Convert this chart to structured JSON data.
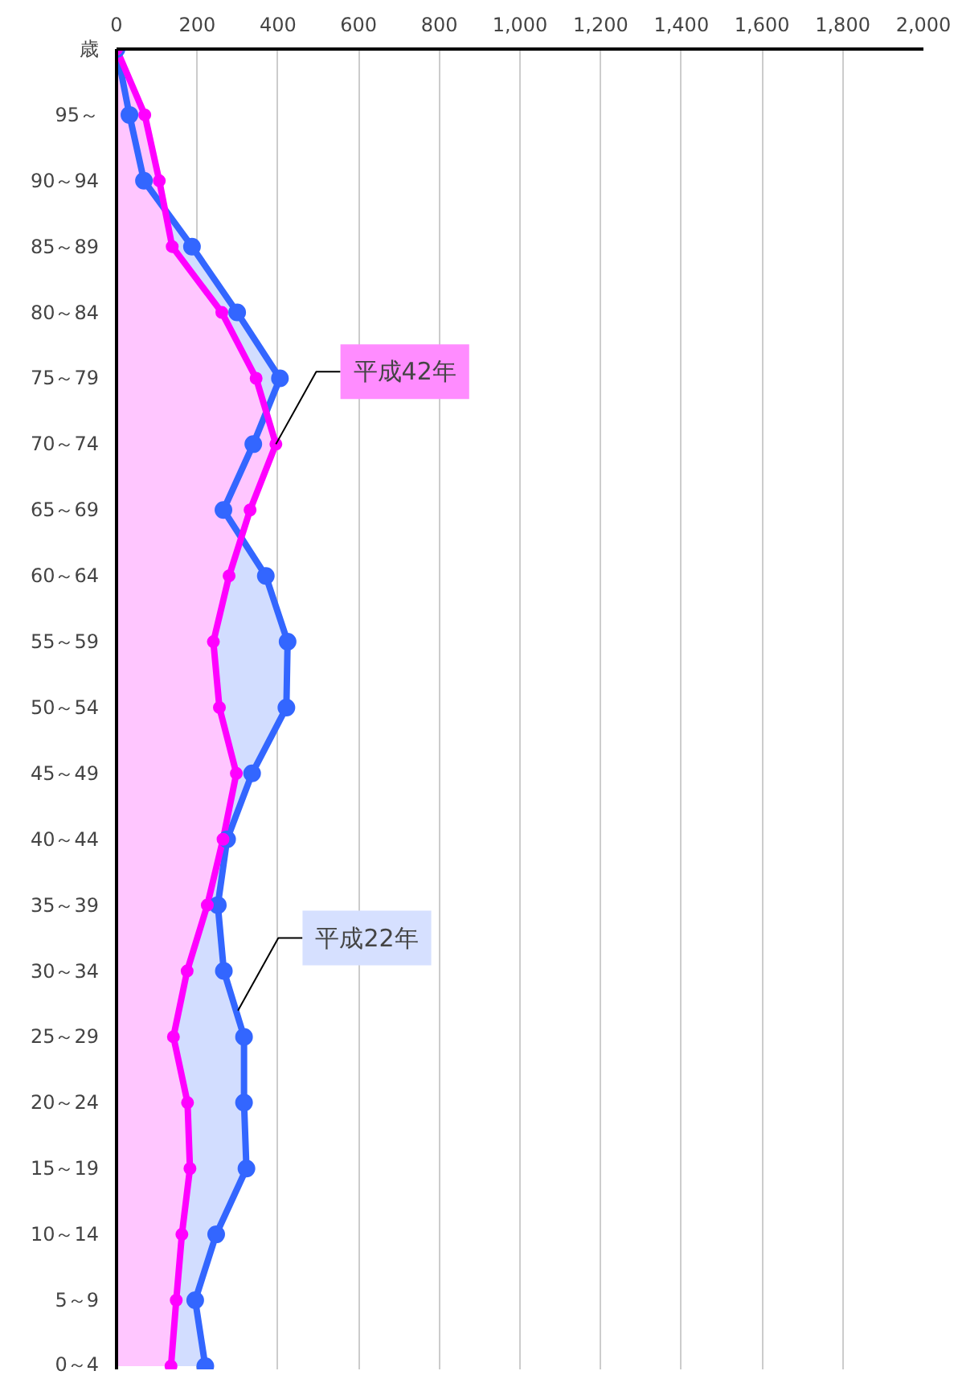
{
  "chart_data": {
    "type": "area",
    "orientation": "horizontal",
    "ylabel": "歳",
    "categories": [
      null,
      "95～",
      "90～94",
      "85～89",
      "80～84",
      "75～79",
      "70～74",
      "65～69",
      "60～64",
      "55～59",
      "50～54",
      "45～49",
      "40～44",
      "35～39",
      "30～34",
      "25～29",
      "20～24",
      "15～19",
      "10～14",
      "5～9",
      "0～4"
    ],
    "series": [
      {
        "name": "平成22年",
        "color": "#3366ff",
        "values": [
          0,
          32,
          68,
          187,
          299,
          405,
          339,
          265,
          370,
          424,
          421,
          336,
          274,
          251,
          266,
          316,
          316,
          322,
          247,
          195,
          220
        ]
      },
      {
        "name": "平成42年",
        "color": "#ff00ff",
        "values": [
          0,
          70,
          106,
          138,
          261,
          346,
          395,
          331,
          279,
          240,
          255,
          297,
          264,
          225,
          175,
          141,
          176,
          182,
          162,
          148,
          135
        ]
      }
    ],
    "xlim": [
      0,
      2000
    ],
    "xticks": [
      0,
      200,
      400,
      600,
      800,
      {
        "value": 1000,
        "label": "1,000"
      },
      {
        "value": 1200,
        "label": "1,200"
      },
      {
        "value": 1400,
        "label": "1,400"
      },
      {
        "value": 1600,
        "label": "1,600"
      },
      {
        "value": 1800,
        "label": "1,800"
      },
      {
        "value": 2000,
        "label": "2,000"
      }
    ],
    "grid": "x",
    "marker": "circle",
    "line_style": "solid"
  }
}
